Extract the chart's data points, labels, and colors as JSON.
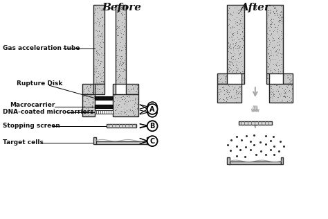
{
  "title_before": "Before",
  "title_after": "After",
  "labels": {
    "gas_tube": "Gas acceleration tube",
    "rupture": "Rupture Disk",
    "macrocarrier": "Macrocarrier",
    "dna": "DNA-coated microcarriers",
    "stopping": "Stopping screen",
    "target": "Target cells"
  },
  "label_A": "A",
  "label_B": "B",
  "label_C": "C",
  "tube_fill": "#cccccc",
  "tube_wall": "#222222",
  "text_color": "#111111",
  "dot_color": "#333333",
  "stipple_color": "#666666",
  "bg_color": "#ffffff"
}
